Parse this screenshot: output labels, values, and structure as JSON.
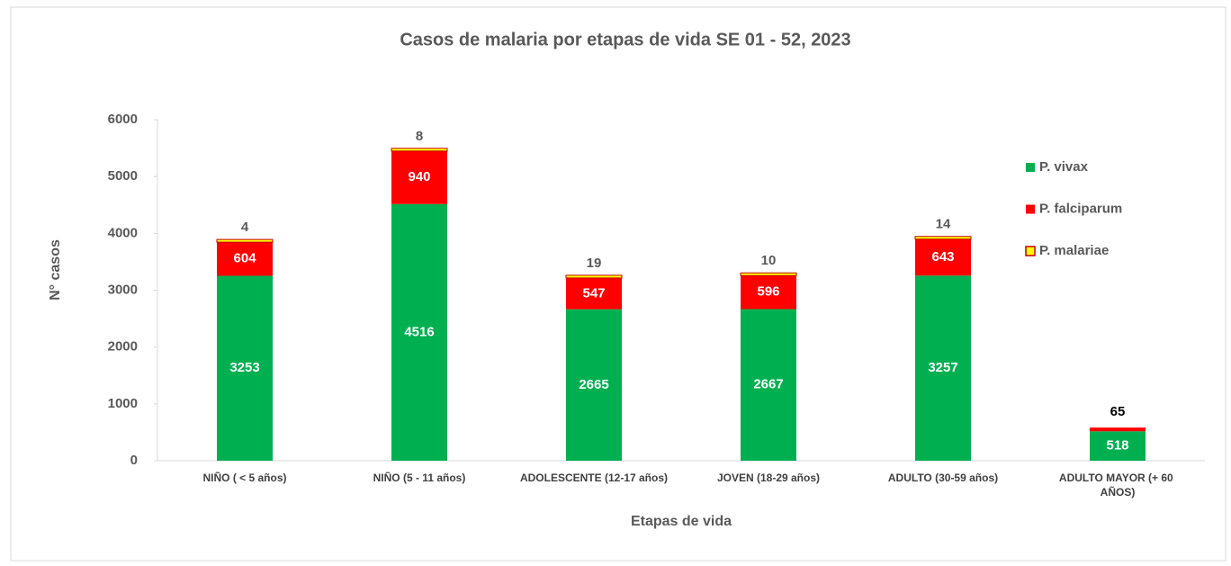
{
  "chart_data": {
    "type": "stacked_bar",
    "title": "Casos de malaria por etapas de vida SE 01 - 52, 2023",
    "x_label": "Etapas de vida",
    "y_label": "N° casos",
    "categories": [
      "NIÑO ( < 5 años)",
      "NIÑO (5 - 11 años)",
      "ADOLESCENTE (12-17 años)",
      "JOVEN (18-29 años)",
      "ADULTO (30-59 años)",
      "ADULTO MAYOR (+ 60 AÑOS)"
    ],
    "series": [
      {
        "name": "P. vivax",
        "color": "#00b050",
        "values": [
          3253,
          4516,
          2665,
          2667,
          3257,
          518
        ]
      },
      {
        "name": "P. falciparum",
        "color": "#ff0000",
        "values": [
          604,
          940,
          547,
          596,
          643,
          65
        ]
      },
      {
        "name": "P. malariae",
        "color": "#ffff00",
        "values": [
          4,
          8,
          19,
          10,
          14,
          null
        ]
      }
    ],
    "ylim": [
      0,
      6000
    ],
    "yticks": [
      0,
      1000,
      2000,
      3000,
      4000,
      5000,
      6000
    ],
    "legend": "right"
  }
}
